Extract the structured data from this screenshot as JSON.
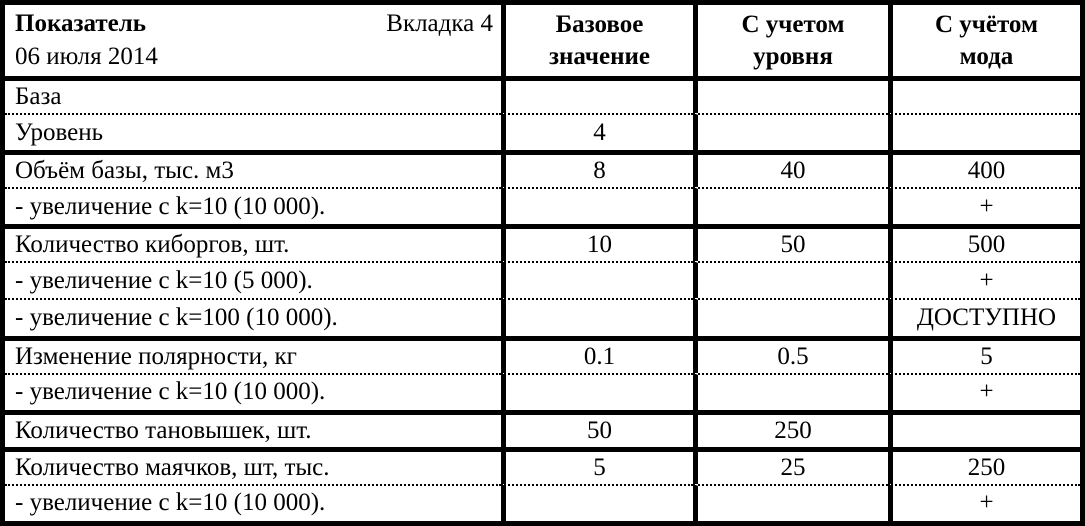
{
  "colors": {
    "border": "#000000",
    "background": "#ffffff",
    "text": "#000000"
  },
  "table": {
    "header": {
      "indicator_label": "Показатель",
      "tab_label": "Вкладка 4",
      "date": "06 июля 2014",
      "columns": [
        "Базовое значение",
        "С учетом уровня",
        "С учётом мода"
      ]
    },
    "rows": [
      {
        "label": "База",
        "base": "",
        "level": "",
        "mod": ""
      },
      {
        "label": "Уровень",
        "base": "4",
        "level": "",
        "mod": ""
      },
      {
        "label": "Объём базы, тыс. м3",
        "base": "8",
        "level": "40",
        "mod": "400"
      },
      {
        "label": "- увеличение с k=10 (10 000).",
        "base": "",
        "level": "",
        "mod": "+"
      },
      {
        "label": "Количество киборгов, шт.",
        "base": "10",
        "level": "50",
        "mod": "500"
      },
      {
        "label": "- увеличение с k=10 (5 000).",
        "base": "",
        "level": "",
        "mod": "+"
      },
      {
        "label": "- увеличение с k=100 (10 000).",
        "base": "",
        "level": "",
        "mod": "ДОСТУПНО"
      },
      {
        "label": "Изменение полярности, кг",
        "base": "0.1",
        "level": "0.5",
        "mod": "5"
      },
      {
        "label": "- увеличение с k=10 (10 000).",
        "base": "",
        "level": "",
        "mod": "+"
      },
      {
        "label": "Количество тановышек, шт.",
        "base": "50",
        "level": "250",
        "mod": ""
      },
      {
        "label": "Количество маячков, шт, тыс.",
        "base": "5",
        "level": "25",
        "mod": "250"
      },
      {
        "label": "- увеличение с k=10 (10 000).",
        "base": "",
        "level": "",
        "mod": "+"
      }
    ]
  }
}
